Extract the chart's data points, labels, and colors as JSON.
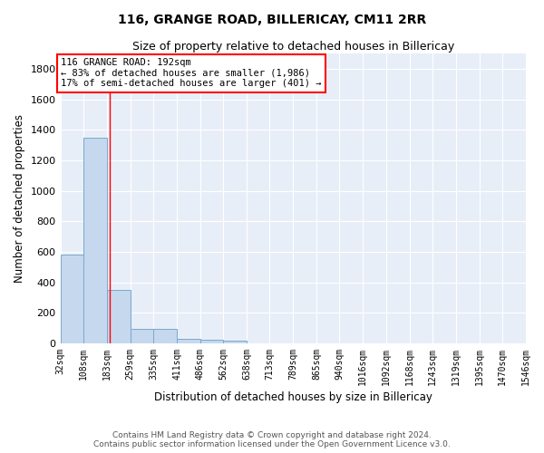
{
  "title": "116, GRANGE ROAD, BILLERICAY, CM11 2RR",
  "subtitle": "Size of property relative to detached houses in Billericay",
  "xlabel": "Distribution of detached houses by size in Billericay",
  "ylabel": "Number of detached properties",
  "footer_line1": "Contains HM Land Registry data © Crown copyright and database right 2024.",
  "footer_line2": "Contains public sector information licensed under the Open Government Licence v3.0.",
  "bin_edges": [
    32,
    108,
    183,
    259,
    335,
    411,
    486,
    562,
    638,
    713,
    789,
    865,
    940,
    1016,
    1092,
    1168,
    1243,
    1319,
    1395,
    1470,
    1546
  ],
  "bar_heights": [
    580,
    1350,
    350,
    95,
    95,
    30,
    25,
    20,
    0,
    0,
    0,
    0,
    0,
    0,
    0,
    0,
    0,
    0,
    0,
    0
  ],
  "bar_color": "#c5d8ee",
  "bar_edge_color": "#7aa8cc",
  "background_color": "#e8eef8",
  "red_line_x": 192,
  "annotation_line1": "116 GRANGE ROAD: 192sqm",
  "annotation_line2": "← 83% of detached houses are smaller (1,986)",
  "annotation_line3": "17% of semi-detached houses are larger (401) →",
  "annotation_box_color": "white",
  "annotation_border_color": "red",
  "ylim": [
    0,
    1900
  ],
  "yticks": [
    0,
    200,
    400,
    600,
    800,
    1000,
    1200,
    1400,
    1600,
    1800
  ],
  "grid_color": "white",
  "title_fontsize": 10,
  "subtitle_fontsize": 9,
  "ylabel_fontsize": 8.5,
  "xlabel_fontsize": 8.5,
  "tick_label_fontsize": 7,
  "annotation_fontsize": 7.5,
  "footer_fontsize": 6.5
}
